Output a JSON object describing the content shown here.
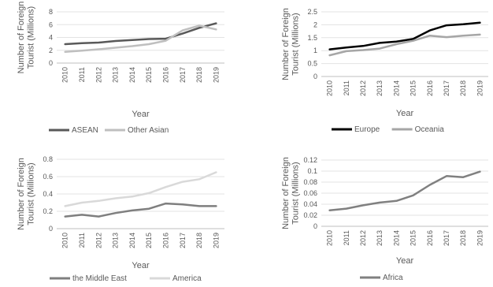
{
  "chart_data": [
    {
      "type": "line",
      "x": [
        "2010",
        "2011",
        "2012",
        "2013",
        "2014",
        "2015",
        "2016",
        "2017",
        "2018",
        "2019"
      ],
      "xlabel": "Year",
      "ylabel": "Number of Foreign Tourist (Millions)",
      "ylim": [
        0,
        8
      ],
      "yticks": [
        "0",
        "2",
        "4",
        "6",
        "8"
      ],
      "grid": true,
      "legend": "bottom",
      "series": [
        {
          "name": "ASEAN",
          "color": "#595959",
          "values": [
            2.95,
            3.1,
            3.2,
            3.45,
            3.6,
            3.75,
            3.8,
            4.6,
            5.5,
            6.2
          ]
        },
        {
          "name": "Other Asian",
          "color": "#bfbfbf",
          "values": [
            1.75,
            1.95,
            2.15,
            2.4,
            2.65,
            2.95,
            3.5,
            5.1,
            5.85,
            5.25
          ]
        }
      ]
    },
    {
      "type": "line",
      "x": [
        "2010",
        "2011",
        "2012",
        "2013",
        "2014",
        "2015",
        "2016",
        "2017",
        "2018",
        "2019"
      ],
      "xlabel": "Year",
      "ylabel": "Number of Foreign Tourist (Millions)",
      "ylim": [
        0,
        2.5
      ],
      "yticks": [
        "0",
        "0.5",
        "1",
        "1.5",
        "2",
        "2.5"
      ],
      "grid": true,
      "legend": "bottom",
      "series": [
        {
          "name": "Europe",
          "color": "#000000",
          "values": [
            1.05,
            1.12,
            1.18,
            1.3,
            1.35,
            1.45,
            1.78,
            1.98,
            2.02,
            2.08
          ]
        },
        {
          "name": "Oceania",
          "color": "#a6a6a6",
          "values": [
            0.82,
            0.98,
            1.02,
            1.08,
            1.25,
            1.38,
            1.58,
            1.52,
            1.58,
            1.62
          ]
        }
      ]
    },
    {
      "type": "line",
      "x": [
        "2010",
        "2011",
        "2012",
        "2013",
        "2014",
        "2015",
        "2016",
        "2017",
        "2018",
        "2019"
      ],
      "xlabel": "Year",
      "ylabel": "Number of Foreign Tourist (Millions)",
      "ylim": [
        0,
        0.8
      ],
      "yticks": [
        "0",
        "0.2",
        "0.4",
        "0.6",
        "0.8"
      ],
      "grid": true,
      "legend": "bottom",
      "series": [
        {
          "name": "the Middle East",
          "color": "#7f7f7f",
          "values": [
            0.14,
            0.16,
            0.14,
            0.18,
            0.21,
            0.23,
            0.29,
            0.28,
            0.26,
            0.26
          ]
        },
        {
          "name": "America",
          "color": "#d9d9d9",
          "values": [
            0.26,
            0.3,
            0.32,
            0.35,
            0.37,
            0.41,
            0.48,
            0.54,
            0.57,
            0.65
          ]
        }
      ]
    },
    {
      "type": "line",
      "x": [
        "2010",
        "2011",
        "2012",
        "2013",
        "2014",
        "2015",
        "2016",
        "2017",
        "2018",
        "2019"
      ],
      "xlabel": "Year",
      "ylabel": "Number of Foreign Tourist (Millions)",
      "ylim": [
        0,
        0.12
      ],
      "yticks": [
        "0",
        "0.02",
        "0.04",
        "0.06",
        "0.08",
        "0.1",
        "0.12"
      ],
      "grid": true,
      "legend": "bottom",
      "series": [
        {
          "name": "Africa",
          "color": "#808080",
          "values": [
            0.029,
            0.032,
            0.038,
            0.043,
            0.046,
            0.056,
            0.075,
            0.091,
            0.089,
            0.099
          ]
        }
      ]
    }
  ]
}
